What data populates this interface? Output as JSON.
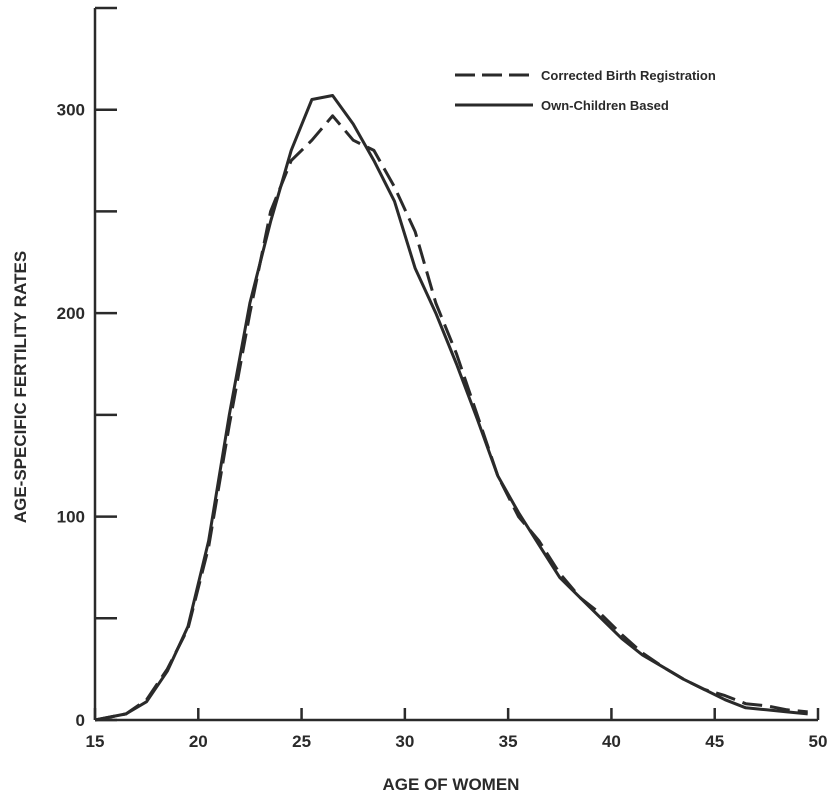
{
  "chart_data": {
    "type": "line",
    "title": "",
    "xlabel": "AGE OF WOMEN",
    "ylabel": "AGE-SPECIFIC FERTILITY RATES",
    "xlim": [
      15,
      50
    ],
    "ylim": [
      0,
      350
    ],
    "x_ticks": [
      15,
      20,
      25,
      30,
      35,
      40,
      45,
      50
    ],
    "y_ticks": [
      0,
      100,
      200,
      300
    ],
    "y_minor_ticks": [
      50,
      150,
      250
    ],
    "x_tick_labels": [
      "15",
      "20",
      "25",
      "30",
      "35",
      "40",
      "45",
      "50"
    ],
    "y_tick_labels": [
      "0",
      "100",
      "200",
      "300"
    ],
    "grid": false,
    "legend_position": "top-right",
    "series": [
      {
        "name": "Corrected Birth Registration",
        "style": "dashed",
        "color": "#2a2a2a",
        "x": [
          15,
          16.5,
          17.5,
          18.5,
          19.5,
          20.5,
          21.5,
          22.5,
          23.5,
          24.5,
          25.5,
          26.5,
          27.5,
          28.5,
          29.5,
          30.5,
          31.5,
          32.5,
          33.5,
          34.5,
          35.5,
          36.5,
          37.5,
          38.5,
          39.5,
          40.5,
          41.5,
          42.5,
          43.5,
          44.5,
          45.5,
          46.5,
          47.5,
          48.5,
          49.5
        ],
        "y": [
          0,
          3,
          10,
          25,
          45,
          85,
          145,
          200,
          250,
          275,
          285,
          297,
          285,
          280,
          262,
          240,
          205,
          180,
          150,
          120,
          100,
          88,
          72,
          60,
          52,
          42,
          33,
          26,
          20,
          15,
          12,
          8,
          7,
          5,
          4
        ]
      },
      {
        "name": "Own-Children Based",
        "style": "solid",
        "color": "#2a2a2a",
        "x": [
          15,
          16.5,
          17.5,
          18.5,
          19.5,
          20.5,
          21.5,
          22.5,
          23.5,
          24.5,
          25.5,
          26.5,
          27.5,
          28.5,
          29.5,
          30.5,
          31.5,
          32.5,
          33.5,
          34.5,
          35.5,
          36.5,
          37.5,
          38.5,
          39.5,
          40.5,
          41.5,
          42.5,
          43.5,
          44.5,
          45.5,
          46.5,
          47.5,
          48.5,
          49.5
        ],
        "y": [
          0,
          3,
          9,
          24,
          46,
          88,
          150,
          205,
          245,
          280,
          305,
          307,
          293,
          275,
          255,
          222,
          200,
          175,
          148,
          120,
          102,
          86,
          70,
          60,
          50,
          40,
          32,
          26,
          20,
          15,
          10,
          6,
          5,
          4,
          3
        ]
      }
    ]
  }
}
